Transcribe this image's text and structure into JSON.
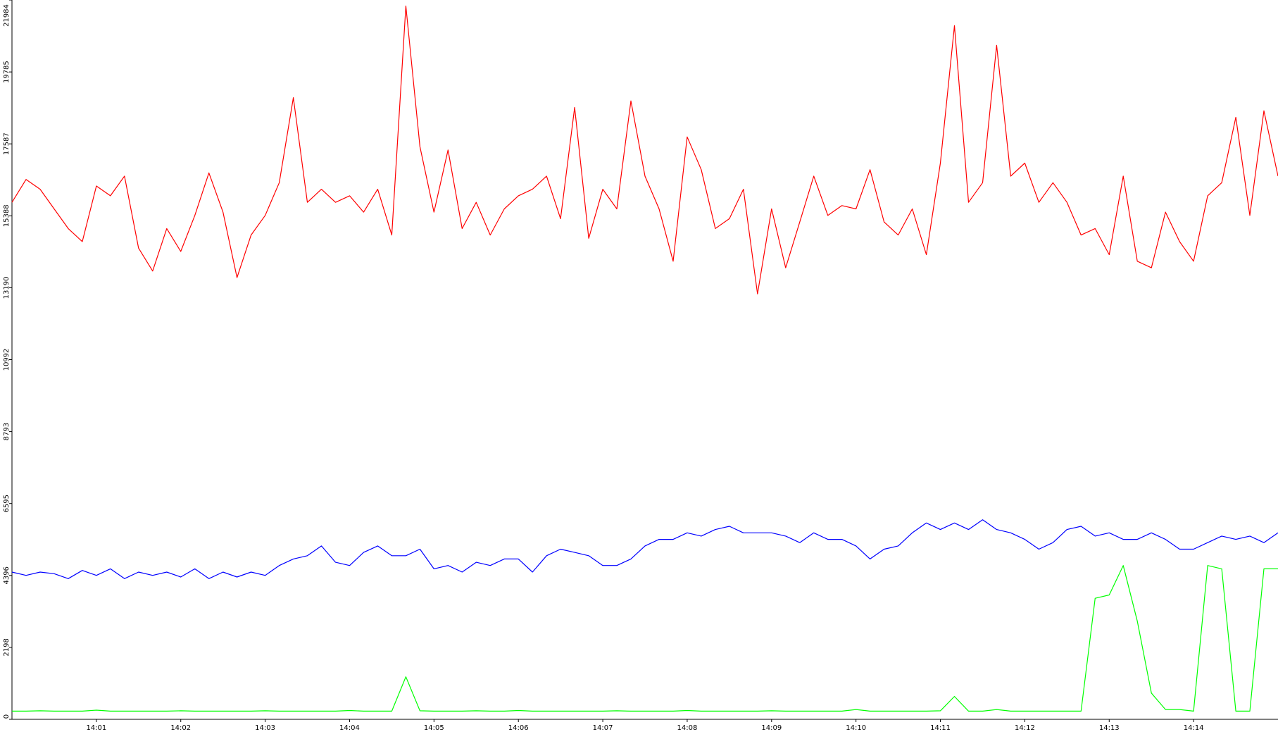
{
  "chart_data": {
    "type": "line",
    "categories": [
      null,
      null,
      null,
      null,
      null,
      null,
      "14:01",
      null,
      null,
      null,
      null,
      null,
      "14:02",
      null,
      null,
      null,
      null,
      null,
      "14:03",
      null,
      null,
      null,
      null,
      null,
      "14:04",
      null,
      null,
      null,
      null,
      null,
      "14:05",
      null,
      null,
      null,
      null,
      null,
      "14:06",
      null,
      null,
      null,
      null,
      null,
      "14:07",
      null,
      null,
      null,
      null,
      null,
      "14:08",
      null,
      null,
      null,
      null,
      null,
      "14:09",
      null,
      null,
      null,
      null,
      null,
      "14:10",
      null,
      null,
      null,
      null,
      null,
      "14:11",
      null,
      null,
      null,
      null,
      null,
      "14:12",
      null,
      null,
      null,
      null,
      null,
      "14:13",
      null,
      null,
      null,
      null,
      null,
      "14:14",
      null,
      null,
      null,
      null,
      null,
      null
    ],
    "series": [
      {
        "color": "#ff0000",
        "values": [
          15800,
          16500,
          16200,
          15600,
          15000,
          14600,
          16300,
          16000,
          16600,
          14400,
          13700,
          15000,
          14300,
          15400,
          16700,
          15500,
          13500,
          14800,
          15400,
          16400,
          19000,
          15800,
          16200,
          15800,
          16000,
          15500,
          16200,
          14800,
          21800,
          17500,
          15500,
          17400,
          15000,
          15800,
          14800,
          15600,
          16000,
          16200,
          16600,
          15300,
          18700,
          14700,
          16200,
          15600,
          18900,
          16600,
          15600,
          14000,
          17800,
          16800,
          15000,
          15300,
          16200,
          13000,
          15600,
          13800,
          15200,
          16600,
          15400,
          15700,
          15600,
          16800,
          15200,
          14800,
          15600,
          14200,
          17000,
          21200,
          15800,
          16400,
          20600,
          16600,
          17000,
          15800,
          16400,
          15800,
          14800,
          15000,
          14200,
          16600,
          14000,
          13800,
          15500,
          14600,
          14000,
          16000,
          16400,
          18400,
          15400,
          18600,
          16600
        ]
      },
      {
        "color": "#0000ff",
        "values": [
          4500,
          4400,
          4500,
          4450,
          4300,
          4550,
          4400,
          4600,
          4300,
          4500,
          4400,
          4500,
          4350,
          4600,
          4300,
          4500,
          4350,
          4500,
          4400,
          4700,
          4900,
          5000,
          5300,
          4800,
          4700,
          5100,
          5300,
          5000,
          5000,
          5200,
          4600,
          4700,
          4500,
          4800,
          4700,
          4900,
          4900,
          4500,
          5000,
          5200,
          5100,
          5000,
          4700,
          4700,
          4900,
          5300,
          5500,
          5500,
          5700,
          5600,
          5800,
          5900,
          5700,
          5700,
          5700,
          5600,
          5400,
          5700,
          5500,
          5500,
          5300,
          4900,
          5200,
          5300,
          5700,
          6000,
          5800,
          6000,
          5800,
          6100,
          5800,
          5700,
          5500,
          5200,
          5400,
          5800,
          5900,
          5600,
          5700,
          5500,
          5500,
          5700,
          5500,
          5200,
          5200,
          5400,
          5600,
          5500,
          5600,
          5400,
          5700
        ]
      },
      {
        "color": "#00ff00",
        "values": [
          250,
          250,
          260,
          250,
          250,
          250,
          280,
          250,
          250,
          250,
          250,
          250,
          260,
          250,
          250,
          250,
          250,
          250,
          260,
          250,
          250,
          250,
          250,
          250,
          270,
          250,
          250,
          250,
          1300,
          260,
          250,
          250,
          250,
          260,
          250,
          250,
          270,
          250,
          250,
          250,
          250,
          250,
          250,
          260,
          250,
          250,
          250,
          250,
          270,
          250,
          250,
          250,
          250,
          250,
          260,
          250,
          250,
          250,
          250,
          250,
          300,
          250,
          250,
          250,
          250,
          250,
          260,
          700,
          250,
          250,
          300,
          250,
          250,
          250,
          250,
          250,
          250,
          3700,
          3800,
          4700,
          3000,
          800,
          300,
          300,
          250,
          4700,
          4600,
          250,
          250,
          4600,
          4600
        ]
      }
    ],
    "ylim": [
      0,
      21984
    ],
    "yticks": [
      0,
      2198,
      4396,
      6595,
      8793,
      10992,
      13190,
      15388,
      17587,
      19785,
      21984
    ]
  }
}
